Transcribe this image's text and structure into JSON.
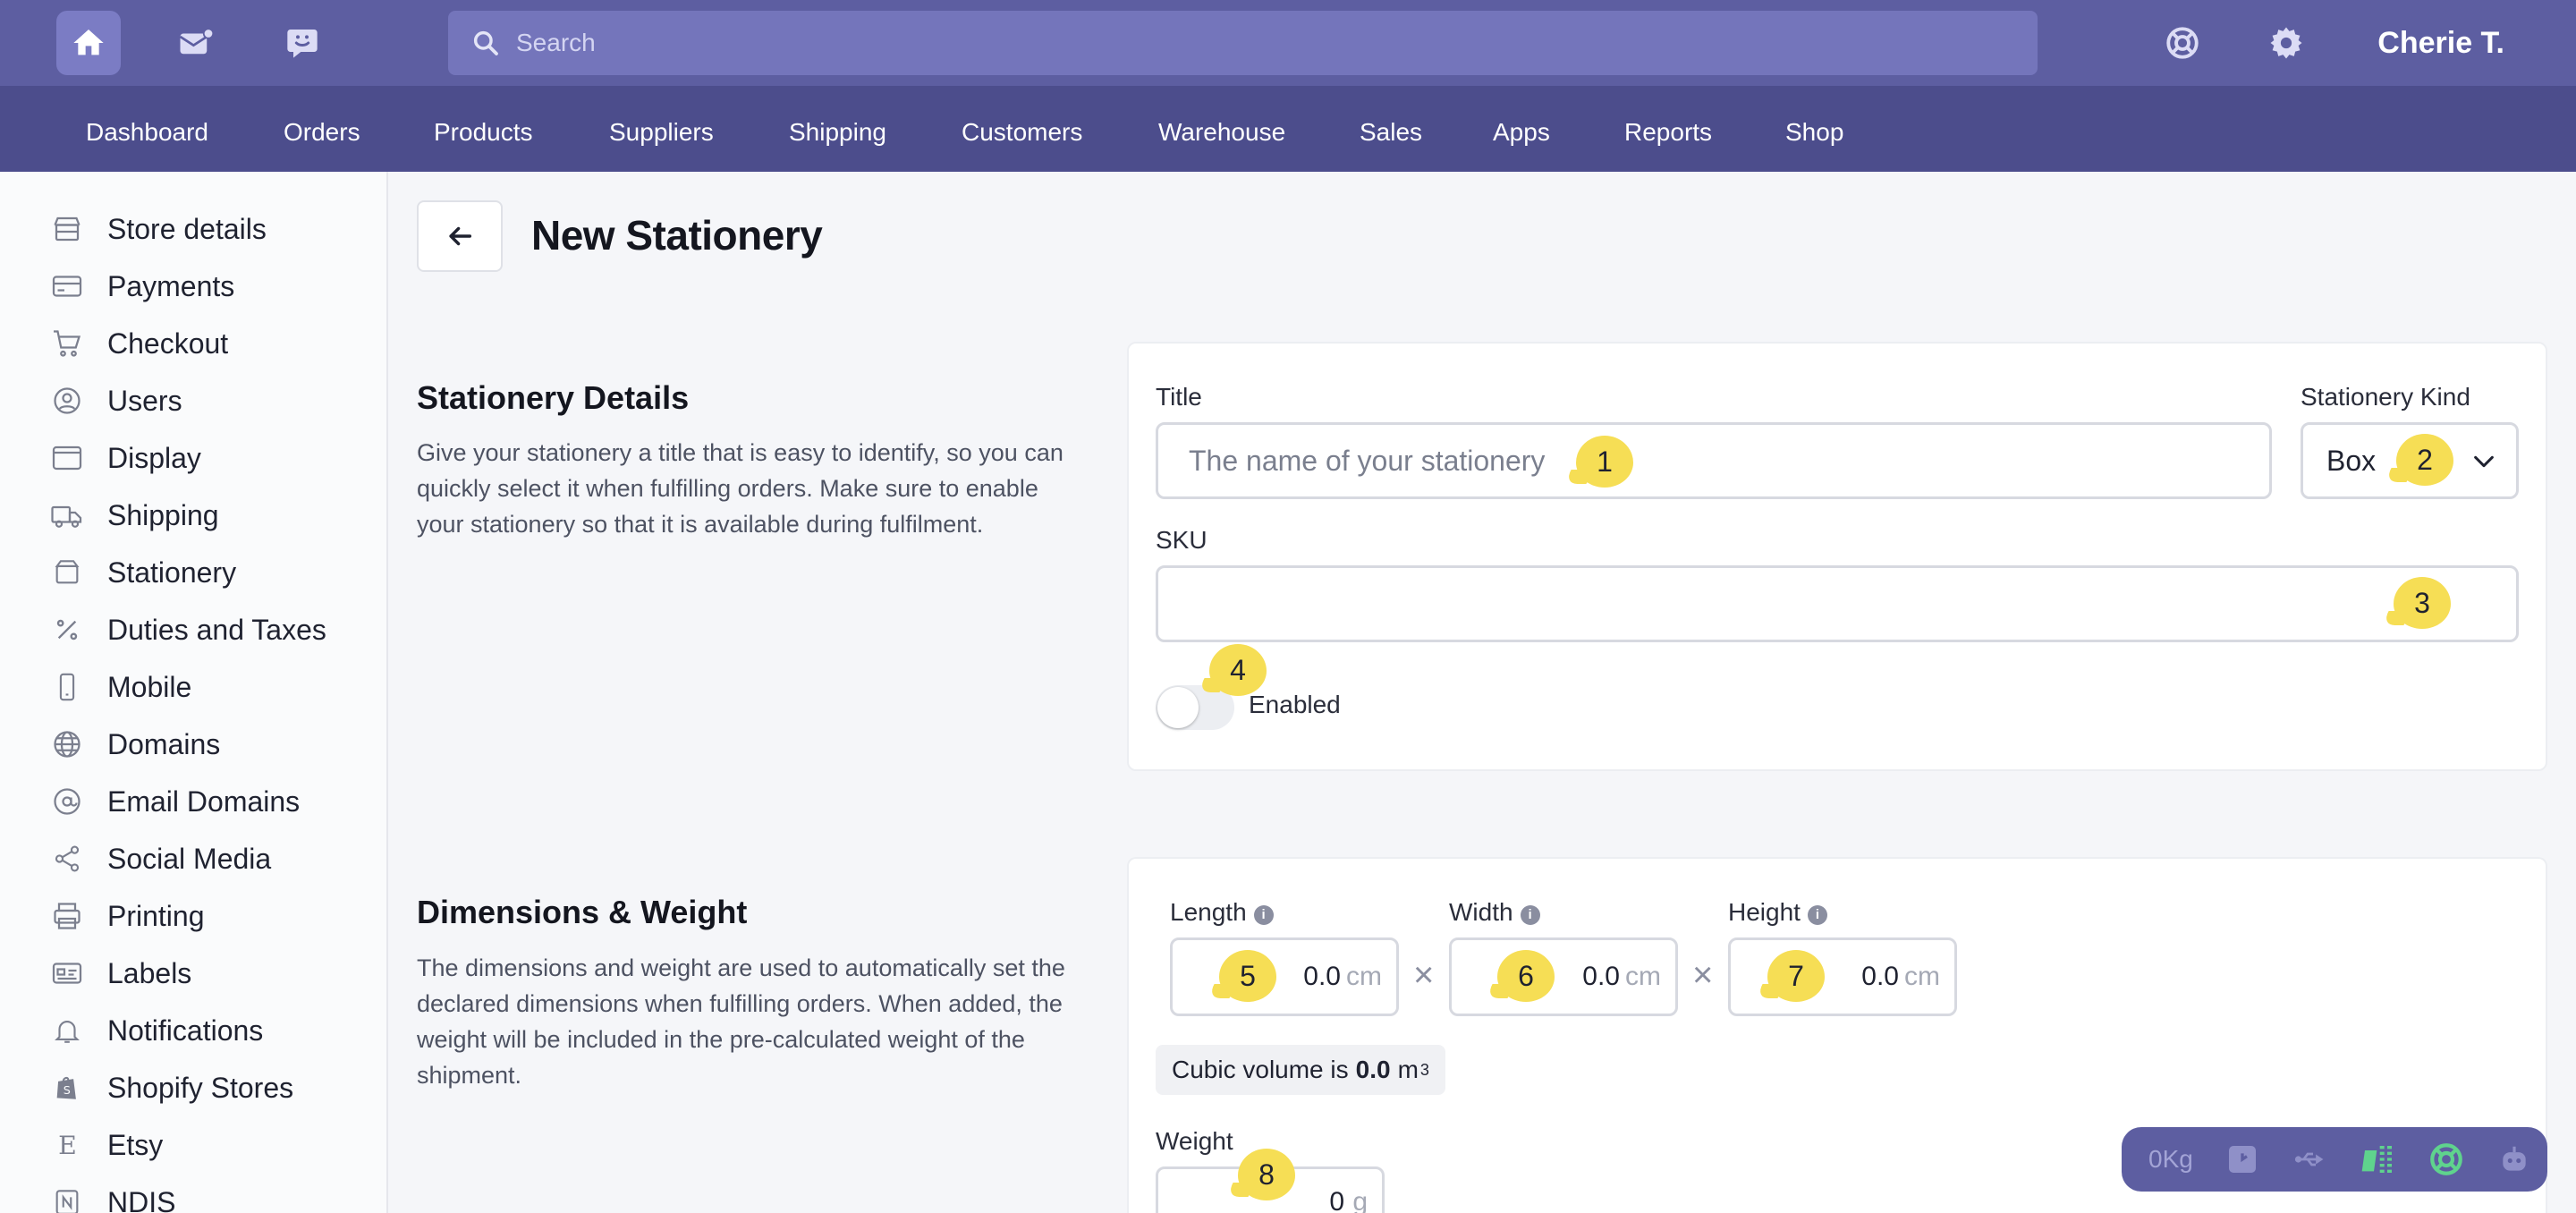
{
  "topbar": {
    "icons": [
      "home-icon",
      "mail-icon",
      "chat-icon",
      "support-icon",
      "gear-icon"
    ],
    "search_placeholder": "Search",
    "user_name": "Cherie T."
  },
  "nav": {
    "items": [
      "Dashboard",
      "Orders",
      "Products",
      "Suppliers",
      "Shipping",
      "Customers",
      "Warehouse",
      "Sales",
      "Apps",
      "Reports",
      "Shop"
    ]
  },
  "sidebar": {
    "items": [
      {
        "label": "Store details",
        "icon": "store-icon"
      },
      {
        "label": "Payments",
        "icon": "credit-card-icon"
      },
      {
        "label": "Checkout",
        "icon": "cart-icon"
      },
      {
        "label": "Users",
        "icon": "user-circle-icon"
      },
      {
        "label": "Display",
        "icon": "browser-window-icon"
      },
      {
        "label": "Shipping",
        "icon": "truck-icon"
      },
      {
        "label": "Stationery",
        "icon": "box-icon"
      },
      {
        "label": "Duties and Taxes",
        "icon": "percent-icon"
      },
      {
        "label": "Mobile",
        "icon": "mobile-icon"
      },
      {
        "label": "Domains",
        "icon": "globe-icon"
      },
      {
        "label": "Email Domains",
        "icon": "at-sign-icon"
      },
      {
        "label": "Social Media",
        "icon": "share-icon"
      },
      {
        "label": "Printing",
        "icon": "printer-icon"
      },
      {
        "label": "Labels",
        "icon": "label-card-icon"
      },
      {
        "label": "Notifications",
        "icon": "bell-icon"
      },
      {
        "label": "Shopify Stores",
        "icon": "shopify-bag-icon"
      },
      {
        "label": "Etsy",
        "icon": "etsy-e-icon"
      },
      {
        "label": "NDIS",
        "icon": "ndis-n-icon"
      }
    ]
  },
  "page": {
    "title": "New Stationery"
  },
  "details": {
    "heading": "Stationery Details",
    "description": "Give your stationery a title that is easy to identify, so you can quickly select it when fulfilling orders. Make sure to enable your stationery so that it is available during fulfilment.",
    "title_label": "Title",
    "title_placeholder": "The name of your stationery",
    "kind_label": "Stationery Kind",
    "kind_value": "Box",
    "sku_label": "SKU",
    "sku_value": "",
    "enabled_label": "Enabled",
    "enabled": false
  },
  "dimensions": {
    "heading": "Dimensions & Weight",
    "description": "The dimensions and weight are used to automatically set the declared dimensions when fulfilling orders. When added, the weight will be included in the pre-calculated weight of the shipment.",
    "length_label": "Length",
    "width_label": "Width",
    "height_label": "Height",
    "length_value": "0.0",
    "width_value": "0.0",
    "height_value": "0.0",
    "unit": "cm",
    "times": "×",
    "cubic_prefix": "Cubic volume is",
    "cubic_value": "0.0",
    "cubic_unit": "m",
    "cubic_exp": "3",
    "weight_label": "Weight",
    "weight_value": "0",
    "weight_unit": "g"
  },
  "badges": [
    "1",
    "2",
    "3",
    "4",
    "5",
    "6",
    "7",
    "8"
  ],
  "statusbar": {
    "weight": "0Kg"
  },
  "colors": {
    "topbar": "#5d5ea1",
    "navbar": "#4c4d8c",
    "badge": "#f6de55",
    "accent_green": "#5fd38d"
  }
}
